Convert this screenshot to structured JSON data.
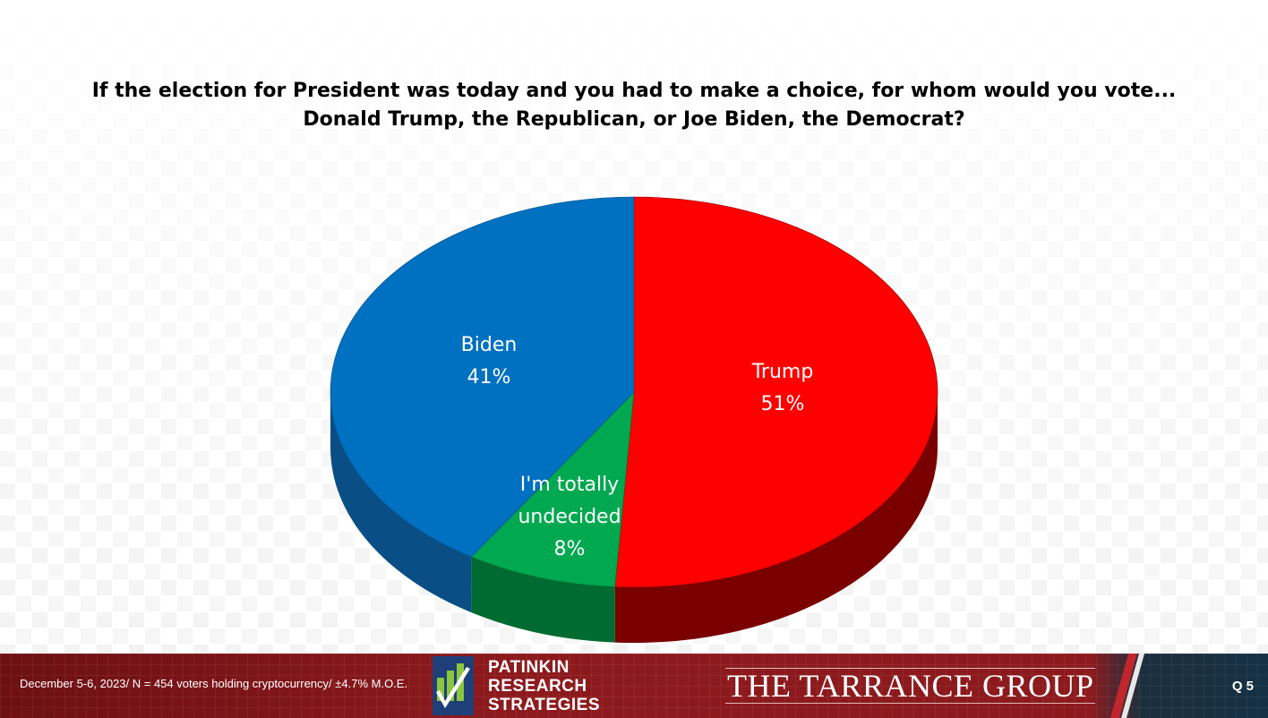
{
  "chart_data": {
    "type": "pie",
    "title": "If the election for President was today and you had to make a choice, for whom would you vote... Donald Trump, the Republican, or Joe Biden, the Democrat?",
    "slices": [
      {
        "label": "Trump",
        "value": 51,
        "value_label": "51%",
        "color": "#ff0000",
        "side_color": "#7a0000"
      },
      {
        "label": "I'm totally undecided",
        "label_lines": [
          "I'm totally",
          "undecided"
        ],
        "value": 8,
        "value_label": "8%",
        "color": "#00a84f",
        "side_color": "#006b30"
      },
      {
        "label": "Biden",
        "value": 41,
        "value_label": "41%",
        "color": "#0070c0",
        "side_color": "#0a4e86"
      }
    ]
  },
  "footer": {
    "note": "December 5-6, 2023/ N = 454 voters holding cryptocurrency/ ±4.7% M.O.E.",
    "logo_lines": [
      "PATINKIN",
      "RESEARCH",
      "STRATEGIES"
    ],
    "firm": "THE TARRANCE GROUP",
    "question_number": "Q 5"
  }
}
